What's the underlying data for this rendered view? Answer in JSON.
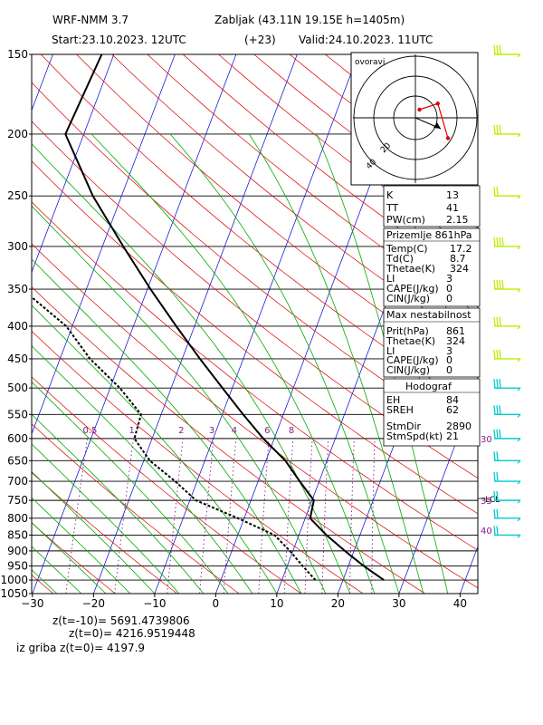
{
  "header": {
    "model": "WRF-NMM 3.7",
    "station": "Zabljak (43.11N 19.15E  h=1405m)",
    "start": "Start:23.10.2023.   12UTC",
    "lead": "(+23)",
    "valid": "Valid:24.10.2023.   11UTC"
  },
  "footer": {
    "line1": "z(t=-10)=  5691.4739806",
    "line2": "z(t=0)=   4216.9519448",
    "line3": "iz griba  z(t=0)=  4197.9"
  },
  "hodograph": {
    "title": "ovoravi",
    "ring_labels": [
      "20",
      "40"
    ]
  },
  "indices": {
    "rows": [
      {
        "label": "K",
        "value": "13"
      },
      {
        "label": "TT",
        "value": "41"
      },
      {
        "label": "PW(cm)",
        "value": "2.15"
      }
    ]
  },
  "surface": {
    "title": "Prizemlje 861hPa",
    "rows": [
      {
        "label": "Temp(C)",
        "value": "17.2"
      },
      {
        "label": "Td(C)",
        "value": "8.7"
      },
      {
        "label": "Thetae(K)",
        "value": "324"
      },
      {
        "label": "LI",
        "value": "3"
      },
      {
        "label": "CAPE(J/kg)",
        "value": "0"
      },
      {
        "label": "CIN(J/kg)",
        "value": "0"
      }
    ]
  },
  "maxunstable": {
    "title": "Max nestabilnost",
    "rows": [
      {
        "label": "Prit(hPa)",
        "value": "861"
      },
      {
        "label": "Thetae(K)",
        "value": "324"
      },
      {
        "label": "LI",
        "value": "3"
      },
      {
        "label": "CAPE(J/kg)",
        "value": "0"
      },
      {
        "label": "CIN(J/kg)",
        "value": "0"
      }
    ]
  },
  "hodograf": {
    "title": "Hodograf",
    "rows": [
      {
        "label": "EH",
        "value": "84"
      },
      {
        "label": "SREH",
        "value": "62"
      },
      {
        "label": "StmDir",
        "value": "2890"
      },
      {
        "label": "StmSpd(kt)",
        "value": "21"
      }
    ]
  },
  "colors": {
    "isobar": "#000000",
    "isotherm": "#0000cc",
    "dry_adiabat": "#dd0000",
    "moist_adiabat": "#00aa00",
    "mixing_ratio": "#8b1a8b",
    "wind_high": "#bbee00",
    "wind_low": "#00cccc"
  },
  "chart_data": {
    "type": "skew-t",
    "xlabel": "",
    "ylabel": "",
    "x_ticks": [
      "−30",
      "−20",
      "−10",
      "0",
      "10",
      "20",
      "30",
      "40"
    ],
    "xlim": [
      -30,
      42
    ],
    "y_ticks": [
      "150",
      "200",
      "250",
      "300",
      "350",
      "400",
      "450",
      "500",
      "550",
      "600",
      "650",
      "700",
      "750",
      "800",
      "850",
      "900",
      "950",
      "1000",
      "1050"
    ],
    "ylim": [
      150,
      1050
    ],
    "mixing_ratio_labels": [
      "0.5",
      "1",
      "2",
      "3",
      "4",
      "6",
      "8"
    ],
    "right_labels": [
      {
        "p": 600,
        "text": "30"
      },
      {
        "p": 750,
        "text": "35"
      },
      {
        "p": 835,
        "text": "40"
      }
    ],
    "lcl_label": "LCL",
    "lcl_p": 745,
    "series": [
      {
        "role": "temperature",
        "points": [
          [
            1000,
            26.7
          ],
          [
            950,
            22.5
          ],
          [
            900,
            18.5
          ],
          [
            850,
            14.5
          ],
          [
            800,
            10.8
          ],
          [
            750,
            10.3
          ],
          [
            700,
            6.8
          ],
          [
            650,
            3.2
          ],
          [
            600,
            -1.8
          ],
          [
            550,
            -6.6
          ],
          [
            500,
            -11.6
          ],
          [
            450,
            -17.1
          ],
          [
            400,
            -23.0
          ],
          [
            350,
            -29.5
          ],
          [
            300,
            -36.6
          ],
          [
            250,
            -44.7
          ],
          [
            200,
            -53.0
          ],
          [
            150,
            -52.0
          ]
        ]
      },
      {
        "role": "dewpoint",
        "points": [
          [
            1000,
            15.5
          ],
          [
            950,
            12.5
          ],
          [
            900,
            9.5
          ],
          [
            850,
            6.0
          ],
          [
            800,
            -1.0
          ],
          [
            750,
            -9.0
          ],
          [
            700,
            -13.6
          ],
          [
            650,
            -19.0
          ],
          [
            600,
            -22.9
          ],
          [
            550,
            -23.3
          ],
          [
            500,
            -28.4
          ],
          [
            450,
            -35.1
          ],
          [
            400,
            -41.0
          ],
          [
            350,
            -50.5
          ],
          [
            300,
            -57.5
          ],
          [
            250,
            -65.5
          ],
          [
            200,
            -79.4
          ],
          [
            150,
            -70.0
          ]
        ]
      }
    ],
    "hodograph_points": [
      [
        1.0,
        2.0
      ],
      [
        5.5,
        3.5
      ],
      [
        8.0,
        -5.0
      ]
    ],
    "winds": [
      {
        "p": 150,
        "color": "wind_high",
        "flags": 0,
        "barbs": 3
      },
      {
        "p": 200,
        "color": "wind_high",
        "flags": 0,
        "barbs": 3
      },
      {
        "p": 250,
        "color": "wind_high",
        "flags": 0,
        "barbs": 2
      },
      {
        "p": 300,
        "color": "wind_high",
        "flags": 0,
        "barbs": 4
      },
      {
        "p": 350,
        "color": "wind_high",
        "flags": 0,
        "barbs": 4
      },
      {
        "p": 400,
        "color": "wind_high",
        "flags": 0,
        "barbs": 3
      },
      {
        "p": 450,
        "color": "wind_high",
        "flags": 0,
        "barbs": 3
      },
      {
        "p": 500,
        "color": "wind_low",
        "flags": 0,
        "barbs": 3
      },
      {
        "p": 550,
        "color": "wind_low",
        "flags": 0,
        "barbs": 3
      },
      {
        "p": 600,
        "color": "wind_low",
        "flags": 0,
        "barbs": 3
      },
      {
        "p": 650,
        "color": "wind_low",
        "flags": 0,
        "barbs": 2
      },
      {
        "p": 700,
        "color": "wind_low",
        "flags": 0,
        "barbs": 2
      },
      {
        "p": 750,
        "color": "wind_low",
        "flags": 0,
        "barbs": 2
      },
      {
        "p": 800,
        "color": "wind_low",
        "flags": 0,
        "barbs": 2
      },
      {
        "p": 850,
        "color": "wind_low",
        "flags": 0,
        "barbs": 2
      }
    ]
  }
}
